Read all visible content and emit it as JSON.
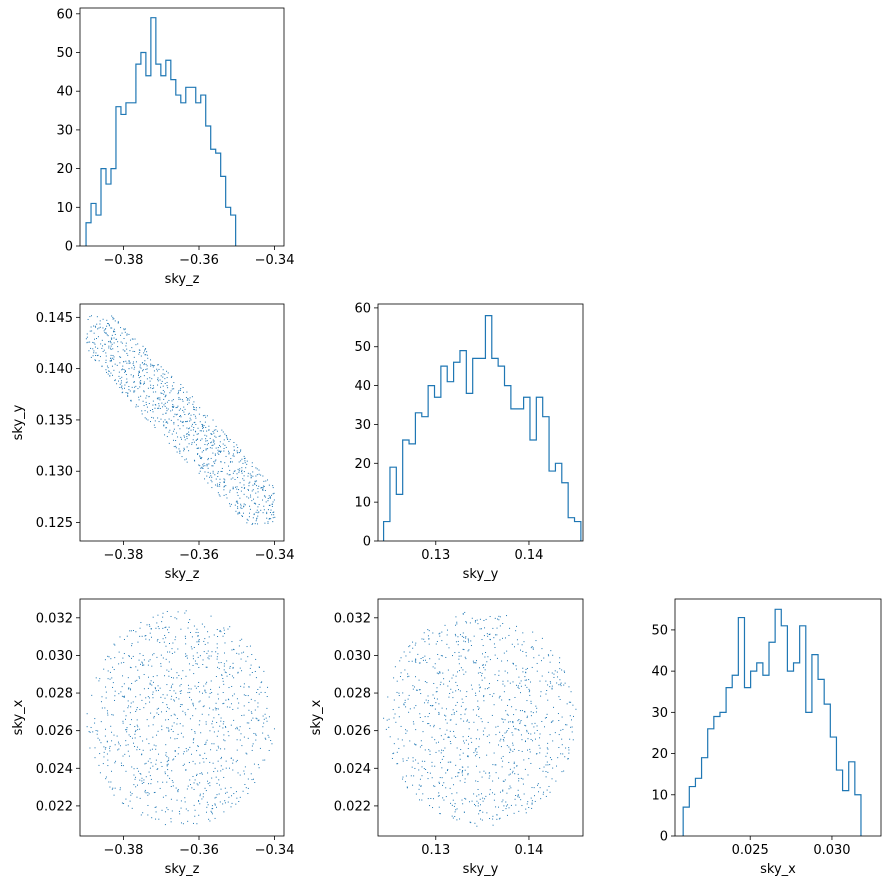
{
  "figure": {
    "background": "#ffffff",
    "line_color": "#1f77b4"
  },
  "chart_data": [
    {
      "id": "hist-sky-z",
      "type": "histogram",
      "xlabel": "sky_z",
      "ylabel": "",
      "xlim": [
        -0.3915,
        -0.3375
      ],
      "ylim": [
        0,
        61.5
      ],
      "xticks": [
        -0.38,
        -0.36,
        -0.34
      ],
      "xticklabels": [
        "−0.38",
        "−0.36",
        "−0.34"
      ],
      "yticks": [
        0,
        10,
        20,
        30,
        40,
        50,
        60
      ],
      "yticklabels": [
        "0",
        "10",
        "20",
        "30",
        "40",
        "50",
        "60"
      ],
      "bin_start": -0.3899,
      "bin_width": 0.00132,
      "counts": [
        6,
        11,
        8,
        20,
        16,
        20,
        36,
        34,
        37,
        37,
        47,
        50,
        44,
        59,
        47,
        44,
        48,
        43,
        39,
        37,
        41,
        41,
        37,
        39,
        31,
        25,
        24,
        18,
        10,
        8
      ]
    },
    {
      "id": "scatter-sky-z-sky-y",
      "type": "scatter",
      "xlabel": "sky_z",
      "ylabel": "sky_y",
      "xlim": [
        -0.3915,
        -0.3375
      ],
      "ylim": [
        0.1232,
        0.1463
      ],
      "xticks": [
        -0.38,
        -0.36,
        -0.34
      ],
      "xticklabels": [
        "−0.38",
        "−0.36",
        "−0.34"
      ],
      "yticks": [
        0.125,
        0.13,
        0.135,
        0.14,
        0.145
      ],
      "yticklabels": [
        "0.125",
        "0.130",
        "0.135",
        "0.140",
        "0.145"
      ],
      "n_points": 1000,
      "x_range": [
        -0.3899,
        -0.3399
      ],
      "y_range": [
        0.1248,
        0.1452
      ],
      "correlation": -0.95
    },
    {
      "id": "hist-sky-y",
      "type": "histogram",
      "xlabel": "sky_y",
      "ylabel": "",
      "xlim": [
        0.1238,
        0.1458
      ],
      "ylim": [
        0,
        61
      ],
      "xticks": [
        0.13,
        0.14
      ],
      "xticklabels": [
        "0.13",
        "0.14"
      ],
      "yticks": [
        0,
        10,
        20,
        30,
        40,
        50,
        60
      ],
      "yticklabels": [
        "0",
        "10",
        "20",
        "30",
        "40",
        "50",
        "60"
      ],
      "bin_start": 0.1244,
      "bin_width": 0.000683,
      "counts": [
        5,
        19,
        12,
        26,
        25,
        33,
        32,
        40,
        37,
        45,
        41,
        46,
        49,
        38,
        47,
        47,
        58,
        47,
        45,
        40,
        34,
        34,
        37,
        26,
        37,
        32,
        18,
        20,
        15,
        6,
        5
      ]
    },
    {
      "id": "scatter-sky-z-sky-x",
      "type": "scatter",
      "xlabel": "sky_z",
      "ylabel": "sky_x",
      "xlim": [
        -0.3915,
        -0.3375
      ],
      "ylim": [
        0.0204,
        0.033
      ],
      "xticks": [
        -0.38,
        -0.36,
        -0.34
      ],
      "xticklabels": [
        "−0.38",
        "−0.36",
        "−0.34"
      ],
      "yticks": [
        0.022,
        0.024,
        0.026,
        0.028,
        0.03,
        0.032
      ],
      "yticklabels": [
        "0.022",
        "0.024",
        "0.026",
        "0.028",
        "0.030",
        "0.032"
      ],
      "n_points": 1000,
      "x_range": [
        -0.3899,
        -0.3399
      ],
      "y_range": [
        0.0209,
        0.0324
      ],
      "correlation": 0
    },
    {
      "id": "scatter-sky-y-sky-x",
      "type": "scatter",
      "xlabel": "sky_y",
      "ylabel": "sky_x",
      "xlim": [
        0.1238,
        0.1458
      ],
      "ylim": [
        0.0204,
        0.033
      ],
      "xticks": [
        0.13,
        0.14
      ],
      "xticklabels": [
        "0.13",
        "0.14"
      ],
      "yticks": [
        0.022,
        0.024,
        0.026,
        0.028,
        0.03,
        0.032
      ],
      "yticklabels": [
        "0.022",
        "0.024",
        "0.026",
        "0.028",
        "0.030",
        "0.032"
      ],
      "n_points": 1000,
      "x_range": [
        0.1244,
        0.1451
      ],
      "y_range": [
        0.0209,
        0.0324
      ],
      "correlation": 0
    },
    {
      "id": "hist-sky-x",
      "type": "histogram",
      "xlabel": "sky_x",
      "ylabel": "",
      "xlim": [
        0.0204,
        0.033
      ],
      "ylim": [
        0,
        57.5
      ],
      "xticks": [
        0.025,
        0.03
      ],
      "xticklabels": [
        "0.025",
        "0.030"
      ],
      "yticks": [
        0,
        10,
        20,
        30,
        40,
        50
      ],
      "yticklabels": [
        "0",
        "10",
        "20",
        "30",
        "40",
        "50"
      ],
      "bin_start": 0.0209,
      "bin_width": 0.000375,
      "counts": [
        7,
        12,
        14,
        19,
        26,
        29,
        30,
        36,
        39,
        53,
        36,
        40,
        42,
        39,
        47,
        55,
        51,
        40,
        42,
        51,
        30,
        44,
        38,
        32,
        24,
        16,
        11,
        18,
        10
      ]
    }
  ]
}
